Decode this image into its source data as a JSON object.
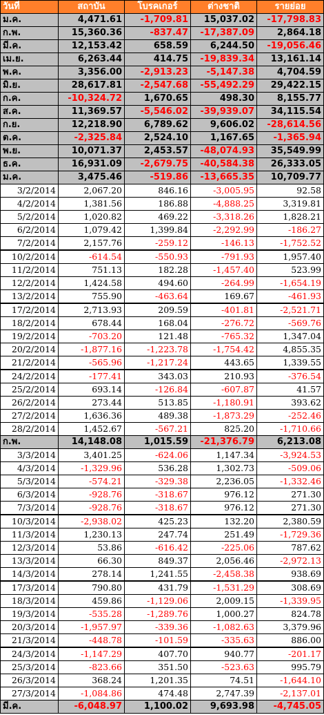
{
  "headers": [
    "วันที่",
    "สถาบัน",
    "โบรคเกอร์",
    "ต่างชาติ",
    "รายย่อย"
  ],
  "monthly": [
    [
      "ม.ค.",
      "4,471.61",
      "-1,709.81",
      "15,037.02",
      "-17,798.83"
    ],
    [
      "ก.พ.",
      "15,360.36",
      "-837.47",
      "-17,387.09",
      "2,864.18"
    ],
    [
      "มี.ค.",
      "12,153.42",
      "658.59",
      "6,244.50",
      "-19,056.46"
    ],
    [
      "เม.ย.",
      "6,263.44",
      "414.75",
      "-19,839.34",
      "13,161.14"
    ],
    [
      "พ.ค.",
      "3,356.00",
      "-2,913.23",
      "-5,147.38",
      "4,704.59"
    ],
    [
      "มิ.ย.",
      "28,617.81",
      "-2,547.68",
      "-55,492.29",
      "29,422.15"
    ],
    [
      "ก.ค.",
      "-10,324.72",
      "1,670.65",
      "498.30",
      "8,155.77"
    ],
    [
      "ส.ค.",
      "11,369.57",
      "-5,546.02",
      "-39,939.07",
      "34,115.54"
    ],
    [
      "ก.ย.",
      "12,218.90",
      "6,789.62",
      "9,606.02",
      "-28,614.56"
    ],
    [
      "ต.ค.",
      "-2,325.84",
      "2,524.10",
      "1,167.65",
      "-1,365.94"
    ],
    [
      "พ.ย.",
      "10,071.37",
      "2,453.57",
      "-48,074.93",
      "35,549.99"
    ],
    [
      "ธ.ค.",
      "16,931.09",
      "-2,679.75",
      "-40,584.38",
      "26,333.05"
    ],
    [
      "ม.ค.",
      "3,475.46",
      "-519.86",
      "-13,665.35",
      "10,709.77"
    ]
  ],
  "feb_daily": [
    [
      "3/2/2014",
      "2,067.20",
      "846.16",
      "-3,005.95",
      "92.58"
    ],
    [
      "4/2/2014",
      "1,381.56",
      "186.88",
      "-4,888.25",
      "3,319.81"
    ],
    [
      "5/2/2014",
      "1,020.82",
      "469.22",
      "-3,318.26",
      "1,828.21"
    ],
    [
      "6/2/2014",
      "1,079.42",
      "1,399.84",
      "-2,292.99",
      "-186.27"
    ],
    [
      "7/2/2014",
      "2,157.76",
      "-259.12",
      "-146.13",
      "-1,752.52"
    ],
    [
      "10/2/2014",
      "-614.54",
      "-550.93",
      "-791.93",
      "1,957.40"
    ],
    [
      "11/2/2014",
      "751.13",
      "182.28",
      "-1,457.40",
      "523.99"
    ],
    [
      "12/2/2014",
      "1,424.58",
      "494.60",
      "-264.99",
      "-1,654.19"
    ],
    [
      "13/2/2014",
      "755.90",
      "-463.64",
      "169.67",
      "-461.93"
    ],
    [
      "17/2/2014",
      "2,713.93",
      "209.59",
      "-401.81",
      "-2,521.71"
    ],
    [
      "18/2/2014",
      "678.44",
      "168.04",
      "-276.72",
      "-569.76"
    ],
    [
      "19/2/2014",
      "-703.20",
      "121.48",
      "-765.32",
      "1,347.04"
    ],
    [
      "20/2/2014",
      "-1,877.16",
      "-1,223.78",
      "-1,754.42",
      "4,855.35"
    ],
    [
      "21/2/2014",
      "-565.96",
      "-1,217.24",
      "443.65",
      "1,339.55"
    ],
    [
      "24/2/2014",
      "-177.41",
      "343.03",
      "210.93",
      "-376.54"
    ],
    [
      "25/2/2014",
      "693.14",
      "-126.84",
      "-607.87",
      "41.57"
    ],
    [
      "26/2/2014",
      "273.44",
      "513.85",
      "-1,180.91",
      "393.62"
    ],
    [
      "27/2/2014",
      "1,636.36",
      "489.38",
      "-1,873.29",
      "-252.46"
    ],
    [
      "28/2/2014",
      "1,452.67",
      "-567.21",
      "825.20",
      "-1,710.66"
    ]
  ],
  "feb_total": [
    "ก.พ.",
    "14,148.08",
    "1,015.59",
    "-21,376.79",
    "6,213.08"
  ],
  "mar_daily": [
    [
      "3/3/2014",
      "3,401.25",
      "-624.06",
      "1,147.34",
      "-3,924.53"
    ],
    [
      "4/3/2014",
      "-1,329.96",
      "536.28",
      "1,302.73",
      "-509.06"
    ],
    [
      "5/3/2014",
      "-574.21",
      "-329.38",
      "2,236.05",
      "-1,332.46"
    ],
    [
      "6/3/2014",
      "-928.76",
      "-318.67",
      "976.12",
      "271.30"
    ],
    [
      "7/3/2014",
      "-928.76",
      "-318.67",
      "976.12",
      "271.30"
    ],
    [
      "10/3/2014",
      "-2,938.02",
      "425.23",
      "132.20",
      "2,380.59"
    ],
    [
      "11/3/2014",
      "1,230.13",
      "247.74",
      "251.49",
      "-1,729.36"
    ],
    [
      "12/3/2014",
      "53.86",
      "-616.42",
      "-225.06",
      "787.62"
    ],
    [
      "13/3/2014",
      "66.30",
      "849.37",
      "2,056.46",
      "-2,972.13"
    ],
    [
      "14/3/2014",
      "278.14",
      "1,241.55",
      "-2,458.38",
      "938.69"
    ],
    [
      "17/3/2014",
      "790.80",
      "431.79",
      "-1,531.29",
      "308.69"
    ],
    [
      "18/3/2014",
      "459.86",
      "-1,129.06",
      "2,009.15",
      "-1,339.95"
    ],
    [
      "19/3/2014",
      "-535.28",
      "-1,289.76",
      "1,000.27",
      "824.78"
    ],
    [
      "20/3/2014",
      "-1,957.97",
      "-339.36",
      "-1,082.63",
      "3,379.96"
    ],
    [
      "21/3/2014",
      "-448.78",
      "-101.59",
      "-335.63",
      "886.00"
    ],
    [
      "24/3/2014",
      "-1,147.29",
      "407.70",
      "940.77",
      "-201.17"
    ],
    [
      "25/3/2014",
      "-823.66",
      "351.50",
      "-523.63",
      "995.79"
    ],
    [
      "26/3/2014",
      "368.24",
      "1,201.35",
      "74.51",
      "-1,644.10"
    ],
    [
      "27/3/2014",
      "-1,084.86",
      "474.48",
      "2,747.39",
      "-2,137.01"
    ]
  ],
  "mar_total": [
    "มี.ค.",
    "-6,048.97",
    "1,100.02",
    "9,693.98",
    "-4,745.05"
  ],
  "colors": {
    "header_bg": "#ff7f2a",
    "header_text": "#ffffff",
    "summary_bg": "#c0c0c0",
    "negative": "#ff0000",
    "positive": "#000000"
  }
}
